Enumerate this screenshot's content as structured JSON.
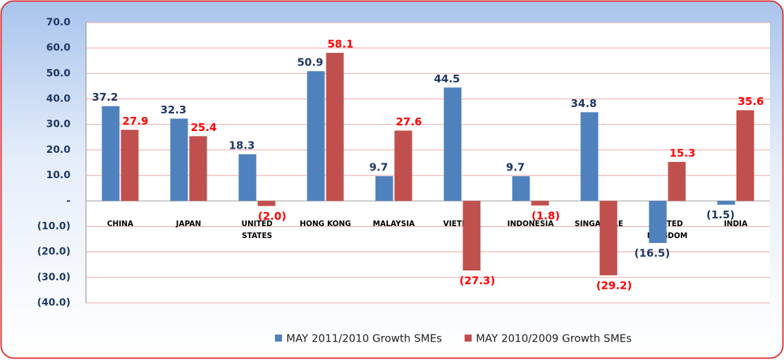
{
  "chart_data": {
    "type": "bar",
    "categories": [
      "CHINA",
      "JAPAN",
      "UNITED STATES",
      "HONG KONG",
      "MALAYSIA",
      "VIETNAM",
      "INDONESIA",
      "SINGAPORE",
      "UNITED KINGDOM",
      "INDIA"
    ],
    "series": [
      {
        "name": "MAY 2011/2010 Growth SMEs",
        "color": "#4f81bd",
        "values": [
          37.2,
          32.3,
          18.3,
          50.9,
          9.7,
          44.5,
          9.7,
          34.8,
          -16.5,
          -1.5
        ],
        "value_labels": [
          "37.2",
          "32.3",
          "18.3",
          "50.9",
          "9.7",
          "44.5",
          "9.7",
          "34.8",
          "(16.5)",
          "(1.5)"
        ]
      },
      {
        "name": "MAY 2010/2009 Growth SMEs",
        "color": "#c0504d",
        "values": [
          27.9,
          25.4,
          -2.0,
          58.1,
          27.6,
          -27.3,
          -1.8,
          -29.2,
          15.3,
          35.6
        ],
        "value_labels": [
          "27.9",
          "25.4",
          "(2.0)",
          "58.1",
          "27.6",
          "(27.3)",
          "(1.8)",
          "(29.2)",
          "15.3",
          "35.6"
        ]
      }
    ],
    "ylim": [
      -40,
      70
    ],
    "yticks": [
      {
        "value": -40,
        "label": "(40.0)"
      },
      {
        "value": -30,
        "label": "(30.0)"
      },
      {
        "value": -20,
        "label": "(20.0)"
      },
      {
        "value": -10,
        "label": "(10.0)"
      },
      {
        "value": 0,
        "label": "-"
      },
      {
        "value": 10,
        "label": "10.0"
      },
      {
        "value": 20,
        "label": "20.0"
      },
      {
        "value": 30,
        "label": "30.0"
      },
      {
        "value": 40,
        "label": "40.0"
      },
      {
        "value": 50,
        "label": "50.0"
      },
      {
        "value": 60,
        "label": "60.0"
      },
      {
        "value": 70,
        "label": "70.0"
      }
    ],
    "grid": true,
    "legend": "bottom"
  }
}
